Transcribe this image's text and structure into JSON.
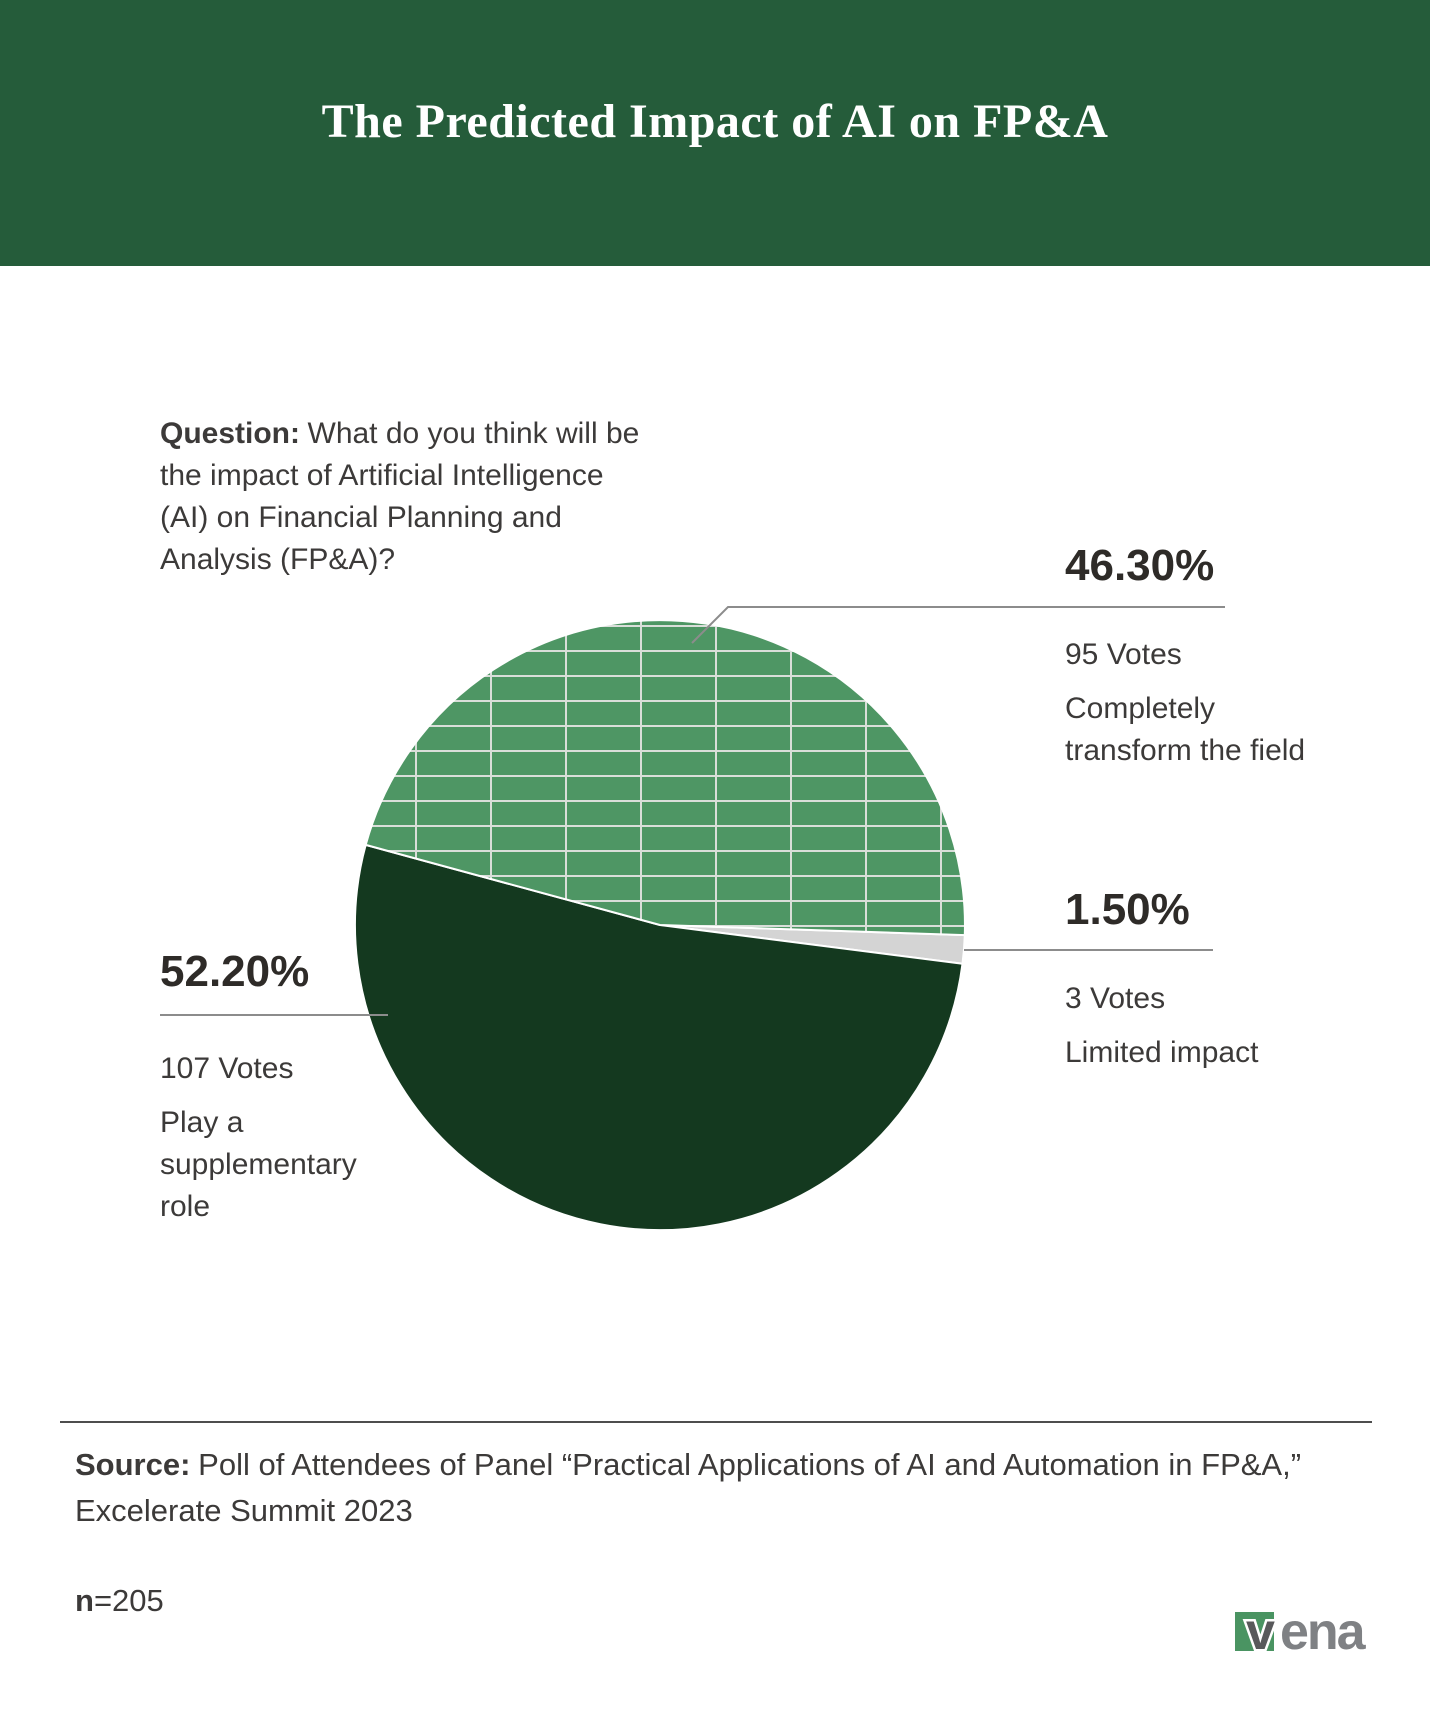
{
  "header": {
    "title": "The Predicted Impact of AI on FP&A"
  },
  "question": {
    "label": "Question:",
    "line1": "What do you think will be",
    "line2": "the impact of Artificial Intelligence",
    "line3": "(AI) on Financial Planning and",
    "line4": "Analysis (FP&A)?"
  },
  "chart_data": {
    "type": "pie",
    "title": "The Predicted Impact of AI on FP&A",
    "unit": "votes",
    "total_responses": 205,
    "slices": [
      {
        "id": "transform",
        "label": "Completely transform the field",
        "pct": 46.3,
        "pct_label": "46.30%",
        "votes": 95,
        "votes_label": "95 Votes",
        "color": "#4E9664",
        "texture": "grid"
      },
      {
        "id": "limited",
        "label": "Limited impact",
        "pct": 1.5,
        "pct_label": "1.50%",
        "votes": 3,
        "votes_label": "3 Votes",
        "color": "#D4D4D4",
        "texture": "solid"
      },
      {
        "id": "supplementary",
        "label": "Play a supplementary role",
        "pct": 52.2,
        "pct_label": "52.20%",
        "votes": 107,
        "votes_label": "107 Votes",
        "color": "#14391F",
        "texture": "solid"
      }
    ],
    "start_angle_deg": 1.9,
    "draw_order_clockwise": [
      1,
      2,
      0
    ],
    "legend_position": "callouts",
    "grid_texture_color": "#D9DED9"
  },
  "footer": {
    "source_label": "Source:",
    "source_line1": "Poll of Attendees of Panel “Practical Applications of AI and Automation in FP&A,”",
    "source_line2": "Excelerate Summit 2023",
    "n_label": "n",
    "n_value": "=205"
  },
  "logo": {
    "mark": "v",
    "text": "ena",
    "square_color": "#4A9462",
    "mark_color": "#58595B",
    "text_color": "#7F8184"
  },
  "colors": {
    "banner_bg": "#255C3A",
    "leader_line": "#8C8C8C",
    "divider": "#4D4D4D",
    "text": "#3C3A39",
    "pct_text": "#2E2B28"
  }
}
